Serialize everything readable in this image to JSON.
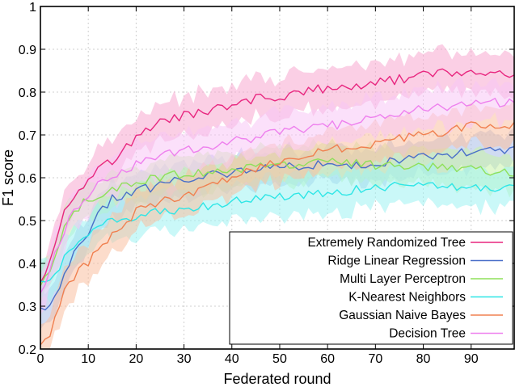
{
  "chart_data": {
    "type": "line",
    "title": "",
    "xlabel": "Federated round",
    "ylabel": "F1 score",
    "xlim": [
      0,
      99
    ],
    "ylim": [
      0.2,
      1.0
    ],
    "xticks": [
      0,
      10,
      20,
      30,
      40,
      50,
      60,
      70,
      80,
      90
    ],
    "yticks": [
      0.2,
      0.3,
      0.4,
      0.5,
      0.6,
      0.7,
      0.8,
      0.9,
      1.0
    ],
    "ytick_labels": [
      "0.2",
      "0.3",
      "0.4",
      "0.5",
      "0.6",
      "0.7",
      "0.8",
      "0.9",
      "1"
    ],
    "grid": true,
    "legend_position": "bottom-right",
    "shaded_band": "mean ± std across runs",
    "series": [
      {
        "name": "Extremely Randomized Tree",
        "color": "#e8267f",
        "band_color": "#f7a8cf",
        "x": [
          0,
          1,
          3,
          5,
          7,
          10,
          12,
          15,
          18,
          20,
          22,
          25,
          28,
          30,
          35,
          40,
          45,
          50,
          55,
          60,
          65,
          70,
          75,
          80,
          85,
          90,
          95,
          99
        ],
        "y": [
          0.36,
          0.38,
          0.45,
          0.52,
          0.56,
          0.6,
          0.62,
          0.64,
          0.67,
          0.69,
          0.71,
          0.73,
          0.74,
          0.745,
          0.755,
          0.77,
          0.785,
          0.79,
          0.8,
          0.81,
          0.815,
          0.82,
          0.83,
          0.84,
          0.845,
          0.845,
          0.845,
          0.84
        ],
        "spread": 0.045
      },
      {
        "name": "Ridge Linear Regression",
        "color": "#4a6fc9",
        "band_color": "#a9bde8",
        "x": [
          0,
          1,
          2,
          3,
          5,
          7,
          10,
          12,
          15,
          18,
          20,
          25,
          30,
          35,
          40,
          45,
          50,
          55,
          60,
          65,
          70,
          75,
          80,
          85,
          90,
          95,
          99
        ],
        "y": [
          0.3,
          0.3,
          0.3,
          0.32,
          0.37,
          0.42,
          0.47,
          0.51,
          0.55,
          0.56,
          0.57,
          0.58,
          0.6,
          0.605,
          0.61,
          0.62,
          0.625,
          0.63,
          0.63,
          0.63,
          0.635,
          0.64,
          0.65,
          0.655,
          0.66,
          0.665,
          0.665
        ],
        "spread": 0.04
      },
      {
        "name": "Multi Layer Perceptron",
        "color": "#8fe05a",
        "band_color": "#c8f2a8",
        "x": [
          0,
          1,
          3,
          5,
          7,
          10,
          12,
          15,
          18,
          20,
          25,
          30,
          35,
          40,
          45,
          50,
          55,
          60,
          65,
          70,
          75,
          80,
          85,
          90,
          95,
          99
        ],
        "y": [
          0.35,
          0.36,
          0.42,
          0.48,
          0.52,
          0.55,
          0.56,
          0.57,
          0.585,
          0.59,
          0.6,
          0.61,
          0.615,
          0.62,
          0.625,
          0.63,
          0.635,
          0.635,
          0.635,
          0.63,
          0.63,
          0.625,
          0.62,
          0.62,
          0.615,
          0.61
        ],
        "spread": 0.04
      },
      {
        "name": "K-Nearest Neighbors",
        "color": "#2ee6e6",
        "band_color": "#9ff3f3",
        "x": [
          0,
          1,
          2,
          3,
          5,
          7,
          10,
          12,
          15,
          18,
          20,
          25,
          30,
          35,
          40,
          45,
          50,
          55,
          60,
          65,
          70,
          75,
          80,
          85,
          90,
          95,
          99
        ],
        "y": [
          0.36,
          0.35,
          0.36,
          0.37,
          0.41,
          0.44,
          0.47,
          0.49,
          0.5,
          0.505,
          0.51,
          0.52,
          0.53,
          0.535,
          0.545,
          0.55,
          0.555,
          0.56,
          0.565,
          0.57,
          0.575,
          0.58,
          0.58,
          0.58,
          0.58,
          0.575,
          0.58
        ],
        "spread": 0.045
      },
      {
        "name": "Gaussian Naive Bayes",
        "color": "#f08050",
        "band_color": "#f9c0a0",
        "x": [
          0,
          1,
          2,
          3,
          5,
          7,
          10,
          12,
          15,
          18,
          20,
          25,
          30,
          35,
          40,
          45,
          50,
          55,
          60,
          65,
          70,
          75,
          80,
          85,
          90,
          95,
          99
        ],
        "y": [
          0.21,
          0.22,
          0.24,
          0.28,
          0.33,
          0.37,
          0.4,
          0.43,
          0.47,
          0.5,
          0.52,
          0.545,
          0.56,
          0.58,
          0.6,
          0.62,
          0.64,
          0.655,
          0.665,
          0.675,
          0.68,
          0.69,
          0.7,
          0.71,
          0.72,
          0.725,
          0.72
        ],
        "spread": 0.045
      },
      {
        "name": "Decision Tree",
        "color": "#ee80ee",
        "band_color": "#f7c6f5",
        "x": [
          0,
          1,
          3,
          5,
          7,
          10,
          12,
          15,
          18,
          20,
          25,
          30,
          35,
          40,
          45,
          50,
          55,
          60,
          65,
          70,
          75,
          80,
          85,
          90,
          95,
          99
        ],
        "y": [
          0.33,
          0.35,
          0.42,
          0.48,
          0.52,
          0.56,
          0.585,
          0.6,
          0.62,
          0.635,
          0.65,
          0.665,
          0.675,
          0.685,
          0.695,
          0.705,
          0.715,
          0.72,
          0.73,
          0.74,
          0.75,
          0.76,
          0.765,
          0.77,
          0.775,
          0.78
        ],
        "spread": 0.045
      }
    ]
  }
}
